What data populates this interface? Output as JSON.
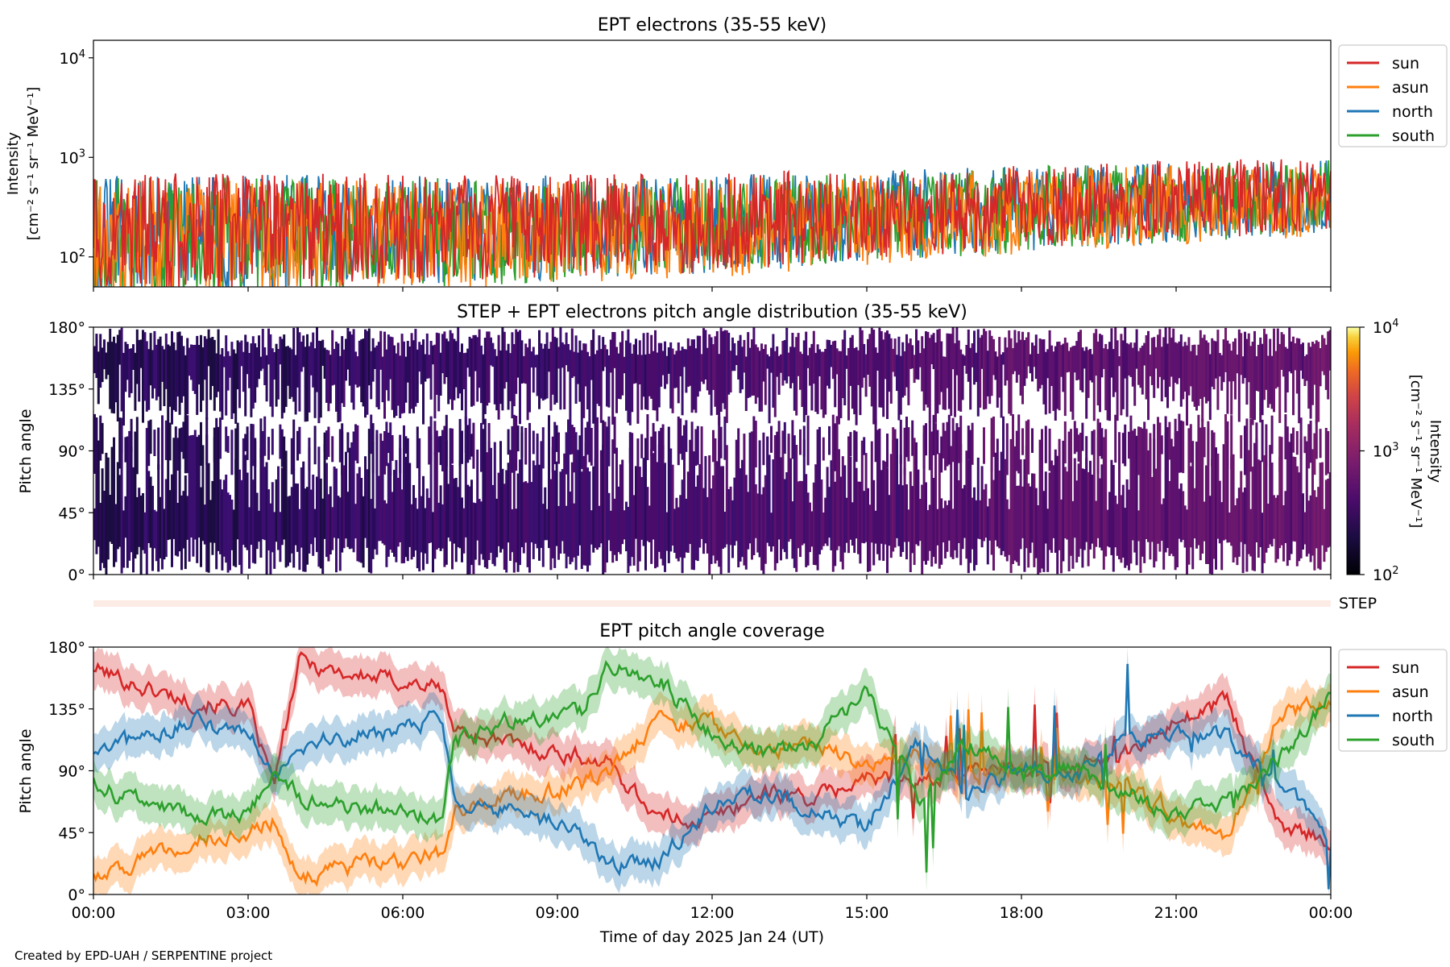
{
  "colors": {
    "sun": "#d62728",
    "asun": "#ff7f0e",
    "north": "#1f77b4",
    "south": "#2ca02c"
  },
  "footer": {
    "credit": "Created by EPD-UAH / SERPENTINE project"
  },
  "chart_data": [
    {
      "type": "line",
      "title": "EPT electrons (35-55 keV)",
      "ylabel_line1": "Intensity",
      "ylabel_line2": "[cm⁻² s⁻¹ sr⁻¹ MeV⁻¹]",
      "yscale": "log",
      "ylim": [
        50,
        15000
      ],
      "yticks": [
        {
          "value": 100,
          "base": "10",
          "exp": "2"
        },
        {
          "value": 1000,
          "base": "10",
          "exp": "3"
        },
        {
          "value": 10000,
          "base": "10",
          "exp": "4"
        }
      ],
      "xlim_hours": [
        0,
        24
      ],
      "legend": {
        "placement": "outside-right",
        "entries": [
          "sun",
          "asun",
          "north",
          "south"
        ]
      },
      "series": [
        {
          "name": "sun",
          "trend_hours": [
            0,
            12,
            24
          ],
          "trend_values": [
            170,
            220,
            420
          ]
        },
        {
          "name": "asun",
          "trend_hours": [
            0,
            12,
            24
          ],
          "trend_values": [
            140,
            190,
            380
          ]
        },
        {
          "name": "north",
          "trend_hours": [
            0,
            12,
            24
          ],
          "trend_values": [
            160,
            210,
            400
          ]
        },
        {
          "name": "south",
          "trend_hours": [
            0,
            12,
            24
          ],
          "trend_values": [
            150,
            200,
            400
          ]
        }
      ]
    },
    {
      "type": "heatmap",
      "title": "STEP + EPT electrons pitch angle distribution (35-55 keV)",
      "ylabel": "Pitch angle",
      "ylim": [
        0,
        180
      ],
      "yticks": [
        "0°",
        "45°",
        "90°",
        "135°",
        "180°"
      ],
      "colorbar": {
        "label_line1": "Intensity",
        "label_line2": "[cm⁻² s⁻¹ sr⁻¹ MeV⁻¹]",
        "scale": "log",
        "range": [
          100,
          10000
        ],
        "ticks": [
          {
            "value": 100,
            "base": "10",
            "exp": "2"
          },
          {
            "value": 1000,
            "base": "10",
            "exp": "3"
          },
          {
            "value": 10000,
            "base": "10",
            "exp": "4"
          }
        ],
        "colormap": "inferno"
      }
    },
    {
      "type": "band",
      "label": "STEP",
      "color": "#fdebe6"
    },
    {
      "type": "line",
      "title": "EPT pitch angle coverage",
      "ylabel": "Pitch angle",
      "ylim": [
        0,
        180
      ],
      "yticks": [
        "0°",
        "45°",
        "90°",
        "135°",
        "180°"
      ],
      "xlim_hours": [
        0,
        24
      ],
      "xticks": [
        "00:00",
        "03:00",
        "06:00",
        "09:00",
        "12:00",
        "15:00",
        "18:00",
        "21:00",
        "00:00"
      ],
      "xlabel": "Time of day 2025 Jan 24 (UT)",
      "legend": {
        "placement": "outside-right",
        "entries": [
          "sun",
          "asun",
          "north",
          "south"
        ]
      },
      "series": [
        {
          "name": "sun",
          "hours": [
            0,
            1,
            2,
            3,
            3.5,
            4,
            5,
            6,
            6.75,
            7,
            8,
            9.5,
            10,
            11,
            12,
            13,
            14,
            15,
            16,
            17,
            18,
            19,
            20,
            21,
            22,
            23,
            24
          ],
          "values": [
            165,
            150,
            140,
            135,
            80,
            170,
            160,
            155,
            150,
            120,
            110,
            100,
            95,
            55,
            55,
            75,
            70,
            85,
            80,
            95,
            90,
            95,
            100,
            125,
            140,
            50,
            40
          ]
        },
        {
          "name": "asun",
          "hours": [
            0,
            1,
            2,
            3,
            3.5,
            4,
            5,
            6,
            6.75,
            7,
            8,
            9.5,
            10,
            11,
            12,
            13,
            14,
            15,
            16,
            17,
            18,
            19,
            20,
            21,
            22,
            23,
            24
          ],
          "values": [
            15,
            25,
            40,
            45,
            55,
            10,
            20,
            25,
            30,
            60,
            70,
            80,
            90,
            125,
            125,
            105,
            110,
            95,
            100,
            85,
            90,
            85,
            80,
            55,
            40,
            130,
            140
          ]
        },
        {
          "name": "north",
          "hours": [
            0,
            1,
            2,
            3,
            3.5,
            4,
            5,
            6,
            6.75,
            7,
            8,
            9.5,
            10,
            11,
            12,
            13,
            14,
            15,
            16,
            17,
            18,
            19,
            20,
            21,
            22,
            23,
            24
          ],
          "values": [
            100,
            115,
            125,
            120,
            90,
            110,
            115,
            120,
            130,
            70,
            60,
            45,
            20,
            25,
            65,
            75,
            60,
            50,
            110,
            70,
            95,
            85,
            110,
            120,
            115,
            80,
            40
          ]
        },
        {
          "name": "south",
          "hours": [
            0,
            1,
            2,
            3,
            3.5,
            4,
            5,
            6,
            6.75,
            7,
            8,
            9.5,
            10,
            11,
            12,
            13,
            14,
            15,
            16,
            17,
            18,
            19,
            20,
            21,
            22,
            23,
            24
          ],
          "values": [
            80,
            65,
            55,
            60,
            90,
            70,
            65,
            60,
            55,
            110,
            125,
            135,
            165,
            155,
            115,
            105,
            110,
            150,
            70,
            110,
            85,
            95,
            70,
            60,
            65,
            100,
            145
          ]
        }
      ]
    }
  ]
}
